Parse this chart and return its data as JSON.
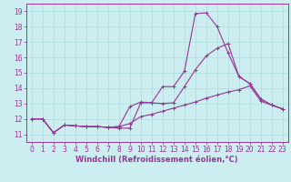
{
  "xlabel": "Windchill (Refroidissement éolien,°C)",
  "background_color": "#cceef0",
  "grid_color": "#aadddd",
  "line_color": "#993399",
  "spine_color": "#993399",
  "xlim": [
    -0.5,
    23.5
  ],
  "ylim": [
    10.5,
    19.5
  ],
  "xticks": [
    0,
    1,
    2,
    3,
    4,
    5,
    6,
    7,
    8,
    9,
    10,
    11,
    12,
    13,
    14,
    15,
    16,
    17,
    18,
    19,
    20,
    21,
    22,
    23
  ],
  "yticks": [
    11,
    12,
    13,
    14,
    15,
    16,
    17,
    18,
    19
  ],
  "line1_y": [
    12.0,
    12.0,
    11.1,
    11.6,
    11.55,
    11.5,
    11.5,
    11.45,
    11.4,
    11.4,
    13.05,
    13.05,
    14.1,
    14.1,
    15.1,
    18.85,
    18.9,
    18.0,
    16.3,
    14.75,
    14.3,
    13.3,
    12.9,
    12.65
  ],
  "line2_y": [
    12.0,
    12.0,
    11.1,
    11.6,
    11.55,
    11.5,
    11.5,
    11.45,
    11.5,
    12.8,
    13.1,
    13.05,
    13.0,
    13.05,
    14.1,
    15.2,
    16.1,
    16.6,
    16.9,
    14.75,
    14.3,
    13.3,
    12.9,
    12.65
  ],
  "line3_y": [
    12.0,
    12.0,
    11.1,
    11.6,
    11.55,
    11.5,
    11.5,
    11.45,
    11.5,
    11.7,
    12.15,
    12.3,
    12.5,
    12.7,
    12.9,
    13.1,
    13.35,
    13.55,
    13.75,
    13.9,
    14.15,
    13.15,
    12.9,
    12.65
  ],
  "xlabel_fontsize": 6,
  "tick_fontsize": 5.5,
  "linewidth": 0.8,
  "markersize": 2.5
}
